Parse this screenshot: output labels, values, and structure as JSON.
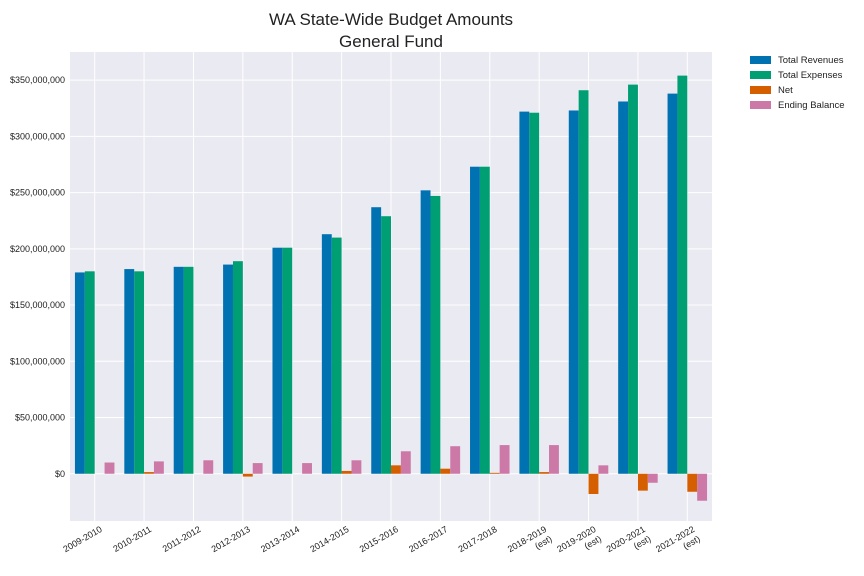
{
  "chart_data": {
    "type": "bar",
    "title": "WA State-Wide Budget Amounts",
    "subtitle": "General Fund",
    "xlabel": "",
    "ylabel": "",
    "categories": [
      [
        "2009-2010"
      ],
      [
        "2010-2011"
      ],
      [
        "2011-2012"
      ],
      [
        "2012-2013"
      ],
      [
        "2013-2014"
      ],
      [
        "2014-2015"
      ],
      [
        "2015-2016"
      ],
      [
        "2016-2017"
      ],
      [
        "2017-2018"
      ],
      [
        "2018-2019",
        "(est)"
      ],
      [
        "2019-2020",
        "(est)"
      ],
      [
        "2020-2021",
        "(est)"
      ],
      [
        "2021-2022",
        "(est)"
      ]
    ],
    "series": [
      {
        "name": "Total Revenues",
        "color": "#0072b2",
        "values": [
          179000000,
          182000000,
          184000000,
          186000000,
          201000000,
          213000000,
          237000000,
          252000000,
          273000000,
          322000000,
          323000000,
          331000000,
          338000000
        ]
      },
      {
        "name": "Total Expenses",
        "color": "#009e73",
        "values": [
          180000000,
          180000000,
          184000000,
          189000000,
          201000000,
          210000000,
          229000000,
          247000000,
          273000000,
          321000000,
          341000000,
          346000000,
          354000000
        ]
      },
      {
        "name": "Net",
        "color": "#d55e00",
        "values": [
          0,
          1500000,
          0,
          -2500000,
          0,
          2500000,
          7500000,
          4500000,
          800000,
          1500000,
          -18000000,
          -15000000,
          -16000000
        ]
      },
      {
        "name": "Ending Balance",
        "color": "#cc79a7",
        "values": [
          10000000,
          11000000,
          12000000,
          9500000,
          9500000,
          12000000,
          20000000,
          24500000,
          25500000,
          25500000,
          7500000,
          -8000000,
          -24000000
        ]
      }
    ],
    "yticks": [
      0,
      50000000,
      100000000,
      150000000,
      200000000,
      250000000,
      300000000,
      350000000
    ],
    "ytick_labels": [
      "$0",
      "$50,000,000",
      "$100,000,000",
      "$150,000,000",
      "$200,000,000",
      "$250,000,000",
      "$300,000,000",
      "$350,000,000"
    ],
    "ylim": [
      -42000000,
      375000000
    ],
    "grid": true,
    "legend_position": "outside-top-right"
  }
}
